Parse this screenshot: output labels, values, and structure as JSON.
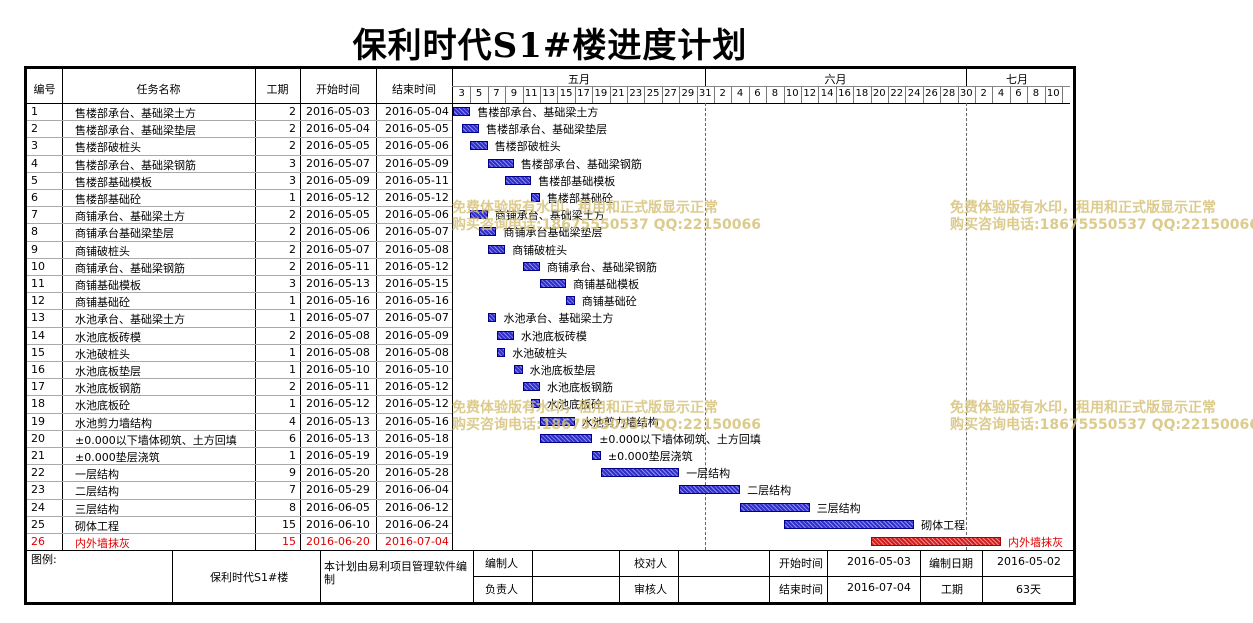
{
  "title": "保利时代S1#楼进度计划",
  "columns": {
    "id": "编号",
    "name": "任务名称",
    "duration": "工期",
    "start": "开始时间",
    "end": "结束时间"
  },
  "months": [
    "五月",
    "六月",
    "七月"
  ],
  "day_ticks": [
    "3",
    "5",
    "7",
    "9",
    "11",
    "13",
    "15",
    "17",
    "19",
    "21",
    "23",
    "25",
    "27",
    "29",
    "31",
    "2",
    "4",
    "6",
    "8",
    "10",
    "12",
    "14",
    "16",
    "18",
    "20",
    "22",
    "24",
    "26",
    "28",
    "30",
    "2",
    "4",
    "6",
    "8",
    "10"
  ],
  "tasks": [
    {
      "id": "1",
      "name": "售楼部承台、基础梁土方",
      "duration": "2",
      "start": "2016-05-03",
      "end": "2016-05-04"
    },
    {
      "id": "2",
      "name": "售楼部承台、基础梁垫层",
      "duration": "2",
      "start": "2016-05-04",
      "end": "2016-05-05"
    },
    {
      "id": "3",
      "name": "售楼部破桩头",
      "duration": "2",
      "start": "2016-05-05",
      "end": "2016-05-06"
    },
    {
      "id": "4",
      "name": "售楼部承台、基础梁钢筋",
      "duration": "3",
      "start": "2016-05-07",
      "end": "2016-05-09"
    },
    {
      "id": "5",
      "name": "售楼部基础模板",
      "duration": "3",
      "start": "2016-05-09",
      "end": "2016-05-11"
    },
    {
      "id": "6",
      "name": "售楼部基础砼",
      "duration": "1",
      "start": "2016-05-12",
      "end": "2016-05-12"
    },
    {
      "id": "7",
      "name": "商铺承台、基础梁土方",
      "duration": "2",
      "start": "2016-05-05",
      "end": "2016-05-06"
    },
    {
      "id": "8",
      "name": "商铺承台基础梁垫层",
      "duration": "2",
      "start": "2016-05-06",
      "end": "2016-05-07"
    },
    {
      "id": "9",
      "name": "商铺破桩头",
      "duration": "2",
      "start": "2016-05-07",
      "end": "2016-05-08"
    },
    {
      "id": "10",
      "name": "商铺承台、基础梁钢筋",
      "duration": "2",
      "start": "2016-05-11",
      "end": "2016-05-12"
    },
    {
      "id": "11",
      "name": "商铺基础模板",
      "duration": "3",
      "start": "2016-05-13",
      "end": "2016-05-15"
    },
    {
      "id": "12",
      "name": "商铺基础砼",
      "duration": "1",
      "start": "2016-05-16",
      "end": "2016-05-16"
    },
    {
      "id": "13",
      "name": "水池承台、基础梁土方",
      "duration": "1",
      "start": "2016-05-07",
      "end": "2016-05-07"
    },
    {
      "id": "14",
      "name": "水池底板砖模",
      "duration": "2",
      "start": "2016-05-08",
      "end": "2016-05-09"
    },
    {
      "id": "15",
      "name": "水池破桩头",
      "duration": "1",
      "start": "2016-05-08",
      "end": "2016-05-08"
    },
    {
      "id": "16",
      "name": "水池底板垫层",
      "duration": "1",
      "start": "2016-05-10",
      "end": "2016-05-10"
    },
    {
      "id": "17",
      "name": "水池底板钢筋",
      "duration": "2",
      "start": "2016-05-11",
      "end": "2016-05-12"
    },
    {
      "id": "18",
      "name": "水池底板砼",
      "duration": "1",
      "start": "2016-05-12",
      "end": "2016-05-12"
    },
    {
      "id": "19",
      "name": "水池剪力墙结构",
      "duration": "4",
      "start": "2016-05-13",
      "end": "2016-05-16"
    },
    {
      "id": "20",
      "name": "±0.000以下墙体砌筑、土方回填",
      "duration": "6",
      "start": "2016-05-13",
      "end": "2016-05-18"
    },
    {
      "id": "21",
      "name": "±0.000垫层浇筑",
      "duration": "1",
      "start": "2016-05-19",
      "end": "2016-05-19"
    },
    {
      "id": "22",
      "name": "一层结构",
      "duration": "9",
      "start": "2016-05-20",
      "end": "2016-05-28"
    },
    {
      "id": "23",
      "name": "二层结构",
      "duration": "7",
      "start": "2016-05-29",
      "end": "2016-06-04"
    },
    {
      "id": "24",
      "name": "三层结构",
      "duration": "8",
      "start": "2016-06-05",
      "end": "2016-06-12"
    },
    {
      "id": "25",
      "name": "砌体工程",
      "duration": "15",
      "start": "2016-06-10",
      "end": "2016-06-24"
    },
    {
      "id": "26",
      "name": "内外墙抹灰",
      "duration": "15",
      "start": "2016-06-20",
      "end": "2016-07-04",
      "critical": true
    }
  ],
  "footer": {
    "legend_label": "图例:",
    "project_name": "保利时代S1#楼",
    "software_note": "本计划由易利项目管理软件编制",
    "editor_label": "编制人",
    "checker_label": "校对人",
    "responsible_label": "负责人",
    "reviewer_label": "审核人",
    "start_label": "开始时间",
    "start_value": "2016-05-03",
    "end_label": "结束时间",
    "end_value": "2016-07-04",
    "date_label": "编制日期",
    "date_value": "2016-05-02",
    "duration_label": "工期",
    "duration_value": "63天"
  },
  "watermark": {
    "line1": "免费体验版有水印，租用和正式版显示正常",
    "line2": "购买咨询电话:18675550537 QQ:22150066"
  },
  "colors": {
    "bar": "#3030c8",
    "critical": "#e00000",
    "watermark": "#d6c27a"
  }
}
